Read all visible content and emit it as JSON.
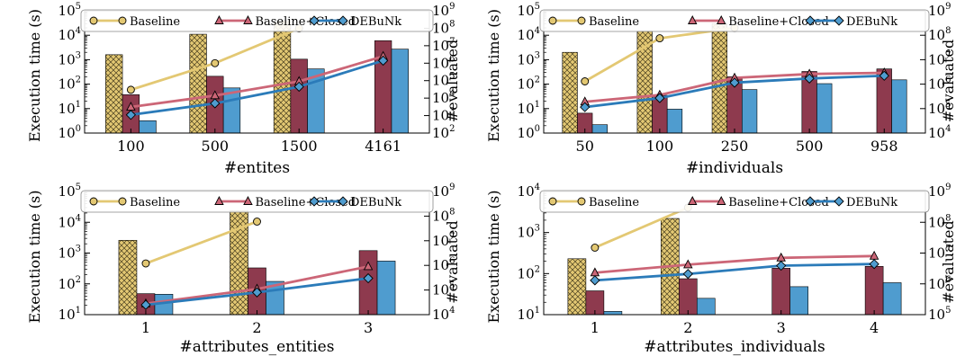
{
  "legend_labels": {
    "baseline": "Baseline",
    "closed": "Baseline+Closed",
    "debunk": "DEBuNk"
  },
  "colors": {
    "baseline": "#e3c873",
    "closed": "#8e3a4e",
    "closed_line": "#cc6677",
    "debunk": "#4f9ccf",
    "debunk_line": "#2b7bb9"
  },
  "chart_data": [
    {
      "type": "bar",
      "categories": [
        "100",
        "500",
        "1500",
        "4161"
      ],
      "xlabel": "#entites",
      "ylabel": "Execution time (s)",
      "y2label": "#evaluated",
      "yscale": "log",
      "ylim": [
        1,
        100000
      ],
      "y2scale": "log",
      "y2lim": [
        100,
        1000000000
      ],
      "legend": "top",
      "bars": [
        {
          "name": "Baseline",
          "values": [
            1600,
            11000,
            40000,
            null
          ]
        },
        {
          "name": "Baseline+Closed",
          "values": [
            37,
            210,
            1050,
            6000
          ]
        },
        {
          "name": "DEBuNk",
          "values": [
            3.2,
            70,
            420,
            2700
          ]
        }
      ],
      "lines": [
        {
          "name": "Baseline",
          "values": [
            30000,
            1000000,
            100000000,
            null
          ]
        },
        {
          "name": "Baseline+Closed",
          "values": [
            3100,
            14000,
            91000,
            2500000
          ]
        },
        {
          "name": "DEBuNk",
          "values": [
            1100,
            5000,
            45000,
            1400000
          ]
        }
      ]
    },
    {
      "type": "bar",
      "categories": [
        "50",
        "100",
        "250",
        "500",
        "958"
      ],
      "xlabel": "#individuals",
      "ylabel": "Execution time (s)",
      "y2label": "#evaluated",
      "yscale": "log",
      "ylim": [
        1,
        100000
      ],
      "y2scale": "log",
      "y2lim": [
        10000,
        1000000000
      ],
      "legend": "top",
      "bars": [
        {
          "name": "Baseline",
          "values": [
            2000,
            15000,
            30000,
            null,
            null
          ]
        },
        {
          "name": "Baseline+Closed",
          "values": [
            6.5,
            35,
            200,
            330,
            420
          ]
        },
        {
          "name": "DEBuNk",
          "values": [
            2.2,
            9.5,
            60,
            105,
            150
          ]
        }
      ],
      "lines": [
        {
          "name": "Baseline",
          "values": [
            1300000,
            75000000,
            200000000,
            null,
            null
          ]
        },
        {
          "name": "Baseline+Closed",
          "values": [
            190000,
            360000,
            1800000,
            2600000,
            2900000
          ]
        },
        {
          "name": "DEBuNk",
          "values": [
            115000,
            270000,
            1150000,
            1700000,
            2200000
          ]
        }
      ]
    },
    {
      "type": "bar",
      "categories": [
        "1",
        "2",
        "3"
      ],
      "xlabel": "#attributes_entities",
      "ylabel": "Execution time (s)",
      "y2label": "#evaluated",
      "yscale": "log",
      "ylim": [
        10,
        100000
      ],
      "y2scale": "log",
      "y2lim": [
        10000,
        1000000000
      ],
      "legend": "top",
      "bars": [
        {
          "name": "Baseline",
          "values": [
            2600,
            24000,
            null
          ]
        },
        {
          "name": "Baseline+Closed",
          "values": [
            48,
            330,
            1200
          ]
        },
        {
          "name": "DEBuNk",
          "values": [
            46,
            120,
            550
          ]
        }
      ],
      "lines": [
        {
          "name": "Baseline",
          "values": [
            1200000,
            60000000,
            null
          ]
        },
        {
          "name": "Baseline+Closed",
          "values": [
            28000,
            110000,
            900000
          ]
        },
        {
          "name": "DEBuNk",
          "values": [
            25000,
            80000,
            300000
          ]
        }
      ]
    },
    {
      "type": "bar",
      "categories": [
        "1",
        "2",
        "3",
        "4"
      ],
      "xlabel": "#attributes_individuals",
      "ylabel": "Execution time (s)",
      "y2label": "#evaluated",
      "yscale": "log",
      "ylim": [
        10,
        10000
      ],
      "y2scale": "log",
      "y2lim": [
        100000,
        1000000000
      ],
      "legend": "top",
      "bars": [
        {
          "name": "Baseline",
          "values": [
            230,
            2200,
            null,
            null
          ]
        },
        {
          "name": "Baseline+Closed",
          "values": [
            38,
            75,
            135,
            150
          ]
        },
        {
          "name": "DEBuNk",
          "values": [
            12,
            25,
            48,
            60
          ]
        }
      ],
      "lines": [
        {
          "name": "Baseline",
          "values": [
            15000000,
            300000000,
            null,
            null
          ]
        },
        {
          "name": "Baseline+Closed",
          "values": [
            2300000,
            4200000,
            7000000,
            8000000
          ]
        },
        {
          "name": "DEBuNk",
          "values": [
            1300000,
            2100000,
            3900000,
            4400000
          ]
        }
      ]
    }
  ]
}
